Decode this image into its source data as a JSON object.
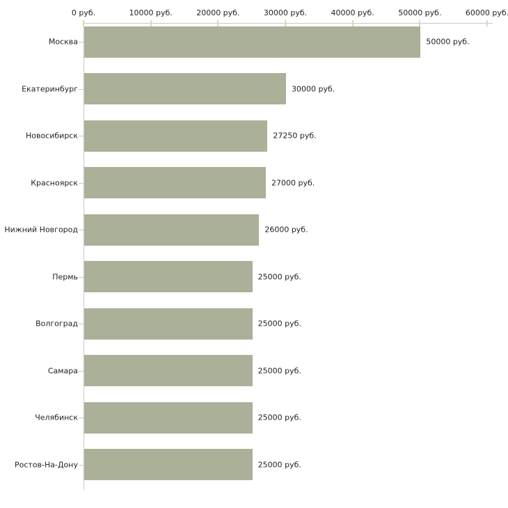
{
  "chart_data": {
    "type": "bar",
    "orientation": "horizontal",
    "title": "",
    "xlabel": "",
    "ylabel": "",
    "categories": [
      "Москва",
      "Екатеринбург",
      "Новосибирск",
      "Красноярск",
      "Нижний Новгород",
      "Пермь",
      "Волгоград",
      "Самара",
      "Челябинск",
      "Ростов-На-Дону"
    ],
    "values": [
      50000,
      30000,
      27250,
      27000,
      26000,
      25000,
      25000,
      25000,
      25000,
      25000
    ],
    "value_labels": [
      "50000 руб.",
      "30000 руб.",
      "27250 руб.",
      "27000 руб.",
      "26000 руб.",
      "25000 руб.",
      "25000 руб.",
      "25000 руб.",
      "25000 руб.",
      "25000 руб."
    ],
    "x_ticks": [
      0,
      10000,
      20000,
      30000,
      40000,
      50000,
      60000
    ],
    "x_tick_labels": [
      "0 руб.",
      "10000 руб.",
      "20000 руб.",
      "30000 руб.",
      "40000 руб.",
      "50000 руб.",
      "60000 руб."
    ],
    "xlim": [
      0,
      60000
    ],
    "grid": false,
    "legend": false,
    "colors": {
      "bar": "#abb098",
      "axis": "#c9c9c9",
      "x_tick_mark": "#d8d9b4",
      "y_tick_mark": "#c9c9bd",
      "text": "#1f1f1f",
      "background": "#ffffff"
    }
  }
}
